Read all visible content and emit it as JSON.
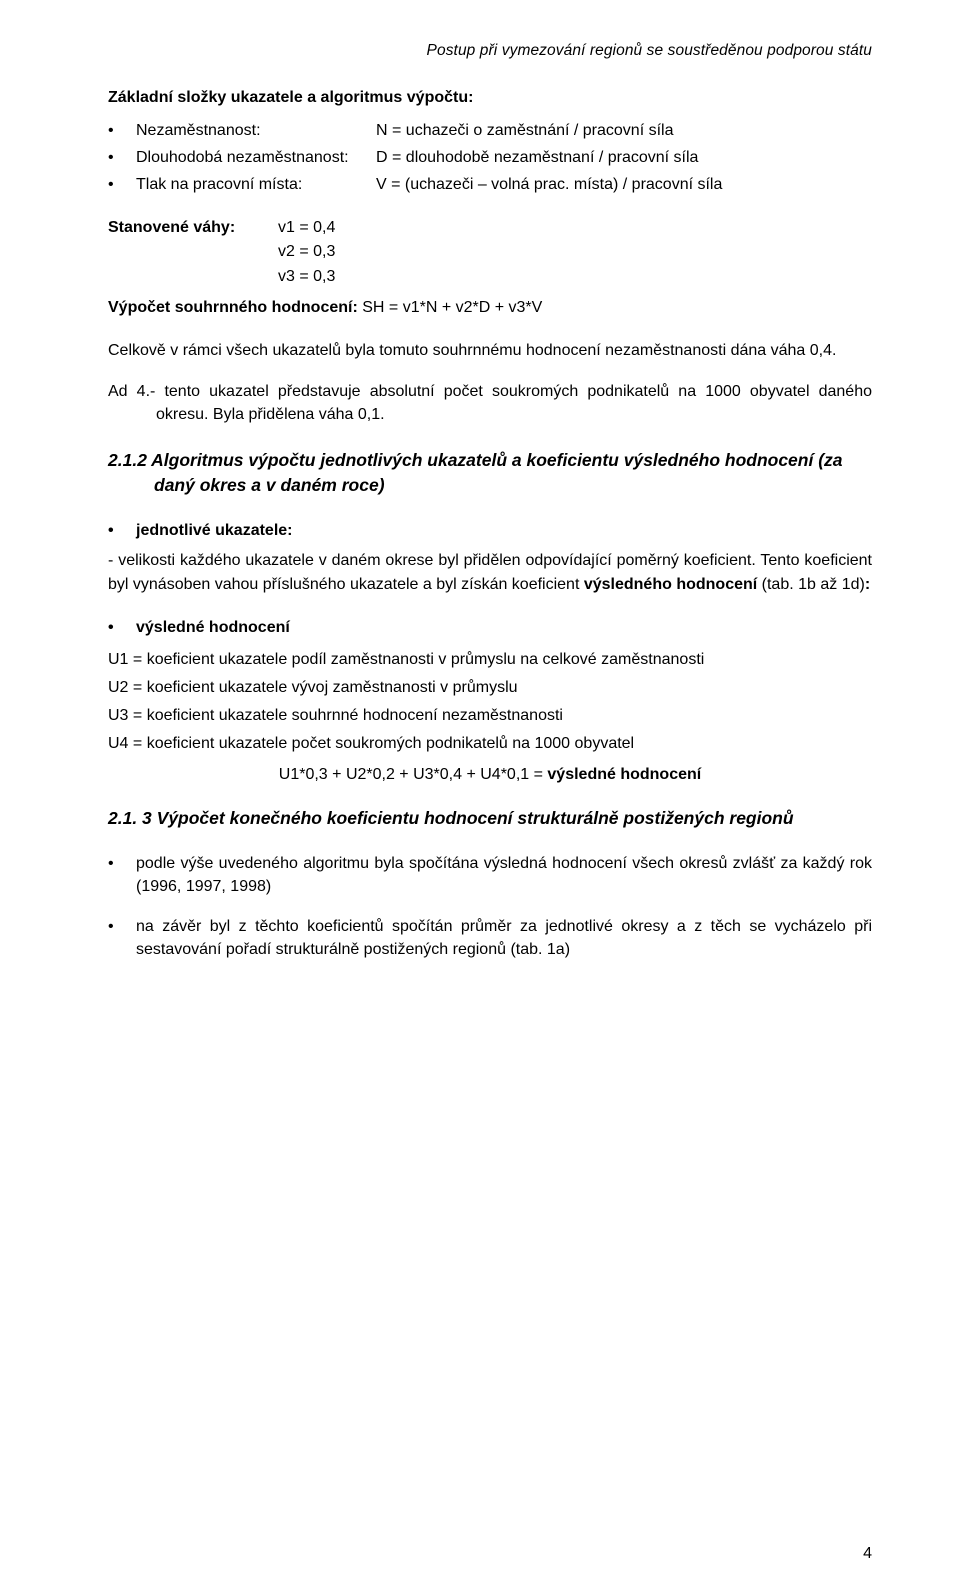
{
  "header": {
    "running_title": "Postup při vymezování regionů se soustředěnou podporou státu"
  },
  "section1": {
    "title_prefix": "Základní složky ukazatele a algoritmus výpočtu:",
    "items": [
      {
        "term": "Nezaměstnanost:",
        "def": "N = uchazeči o zaměstnání / pracovní síla"
      },
      {
        "term": "Dlouhodobá nezaměstnanost:",
        "def": "D = dlouhodobě nezaměstnaní / pracovní síla"
      },
      {
        "term": "Tlak na pracovní místa:",
        "def": "V = (uchazeči – volná prac. místa) / pracovní síla"
      }
    ]
  },
  "weights": {
    "label": "Stanovené váhy:",
    "v1": "v1 = 0,4",
    "v2": "v2 = 0,3",
    "v3": "v3 = 0,3",
    "sum_label": "Výpočet souhrnného hodnocení:",
    "sum_formula": " SH = v1*N + v2*D + v3*V"
  },
  "para_overall": "Celkově v rámci všech ukazatelů byla tomuto souhrnnému hodnocení nezaměstnanosti dána váha 0,4.",
  "ad4": "Ad 4.- tento ukazatel představuje absolutní počet soukromých podnikatelů na 1000 obyvatel daného okresu. Byla přidělena váha 0,1.",
  "h3_212": "2.1.2 Algoritmus výpočtu jednotlivých ukazatelů a koeficientu výsledného hodnocení (za daný okres a v daném roce)",
  "subsec1": {
    "lead": "jednotlivé ukazatele:",
    "dash_para_a": "- velikosti každého ukazatele v daném okrese byl přidělen odpovídající poměrný koeficient. Tento koeficient byl vynásoben vahou příslušného ukazatele a byl získán koeficient ",
    "dash_para_bold": "výsledného hodnocení",
    "dash_para_b": " (tab. 1b až 1d)",
    "dash_para_colon": ":"
  },
  "subsec2": {
    "lead": "výsledné hodnocení",
    "u1": "U1 = koeficient ukazatele podíl zaměstnanosti v průmyslu na celkové zaměstnanosti",
    "u2": "U2 = koeficient ukazatele vývoj zaměstnanosti v průmyslu",
    "u3": "U3 = koeficient ukazatele souhrnné hodnocení nezaměstnanosti",
    "u4": "U4 = koeficient ukazatele počet soukromých podnikatelů na 1000 obyvatel",
    "eq_a": "U1*0,3 + U2*0,2 + U3*0,4 + U4*0,1 = ",
    "eq_b": "výsledné hodnocení"
  },
  "h3_213": "2.1. 3 Výpočet konečného koeficientu hodnocení strukturálně postižených regionů",
  "final": {
    "b1": "podle výše uvedeného algoritmu byla spočítána výsledná hodnocení všech okresů zvlášť za každý rok (1996, 1997, 1998)",
    "b2": "na závěr byl z těchto koeficientů spočítán průměr za jednotlivé okresy a z těch se vycházelo při sestavování pořadí strukturálně postižených regionů (tab. 1a)"
  },
  "page_number": "4"
}
